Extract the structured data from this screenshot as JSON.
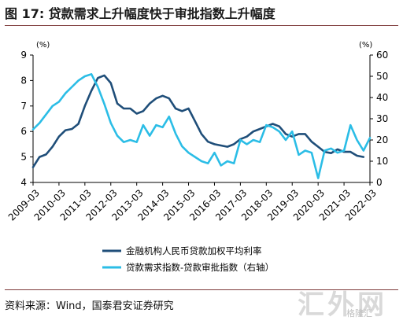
{
  "figure_title": "图 17: 贷款需求上升幅度快于审批指数上升幅度",
  "source": "资料来源：Wind，国泰君安证券研究",
  "watermark": "汇外网",
  "watermark_sub": "格隆汇",
  "colors": {
    "series_left": "#1f4e79",
    "series_right": "#2bbde6",
    "rule": "#7f3b3b"
  },
  "chart_data": {
    "type": "line",
    "left_axis_unit": "(%)",
    "right_axis_unit": "(%)",
    "ylim": [
      4,
      9
    ],
    "ylim_right": [
      0,
      60
    ],
    "yticks": [
      4,
      5,
      6,
      7,
      8,
      9
    ],
    "yticks_right": [
      0,
      10,
      20,
      30,
      40,
      50,
      60
    ],
    "x_range": [
      "2009-03",
      "2022-03"
    ],
    "xticks": [
      "2009-03",
      "2010-03",
      "2011-03",
      "2012-03",
      "2013-03",
      "2014-03",
      "2015-03",
      "2016-03",
      "2017-03",
      "2018-03",
      "2019-03",
      "2020-03",
      "2021-03",
      "2022-03"
    ],
    "grid": false,
    "legend_position": "bottom",
    "series": [
      {
        "name": "金融机构人民币贷款加权平均利率",
        "axis": "left",
        "x": [
          "2009-03",
          "2009-06",
          "2009-09",
          "2009-12",
          "2010-03",
          "2010-06",
          "2010-09",
          "2010-12",
          "2011-03",
          "2011-06",
          "2011-09",
          "2011-12",
          "2012-03",
          "2012-06",
          "2012-09",
          "2012-12",
          "2013-03",
          "2013-06",
          "2013-09",
          "2013-12",
          "2014-03",
          "2014-06",
          "2014-09",
          "2014-12",
          "2015-03",
          "2015-06",
          "2015-09",
          "2015-12",
          "2016-03",
          "2016-06",
          "2016-09",
          "2016-12",
          "2017-03",
          "2017-06",
          "2017-09",
          "2017-12",
          "2018-03",
          "2018-06",
          "2018-09",
          "2018-12",
          "2019-03",
          "2019-06",
          "2019-09",
          "2019-12",
          "2020-03",
          "2020-06",
          "2020-09",
          "2020-12",
          "2021-03",
          "2021-06",
          "2021-09",
          "2021-12"
        ],
        "values": [
          4.6,
          5.0,
          5.1,
          5.4,
          5.8,
          6.05,
          6.1,
          6.3,
          7.0,
          7.6,
          8.1,
          8.2,
          7.9,
          7.1,
          6.9,
          6.9,
          6.7,
          6.8,
          7.1,
          7.3,
          7.4,
          7.3,
          6.9,
          6.8,
          6.9,
          6.4,
          5.9,
          5.6,
          5.5,
          5.45,
          5.4,
          5.5,
          5.7,
          5.8,
          6.0,
          6.1,
          6.2,
          6.3,
          6.2,
          5.9,
          5.8,
          5.9,
          5.9,
          5.6,
          5.4,
          5.2,
          5.15,
          5.3,
          5.2,
          5.2,
          5.05,
          5.0
        ]
      },
      {
        "name": "贷款需求指数-贷款审批指数（右轴）",
        "axis": "right",
        "x": [
          "2009-03",
          "2009-06",
          "2009-09",
          "2009-12",
          "2010-03",
          "2010-06",
          "2010-09",
          "2010-12",
          "2011-03",
          "2011-06",
          "2011-09",
          "2011-12",
          "2012-03",
          "2012-06",
          "2012-09",
          "2012-12",
          "2013-03",
          "2013-06",
          "2013-09",
          "2013-12",
          "2014-03",
          "2014-06",
          "2014-09",
          "2014-12",
          "2015-03",
          "2015-06",
          "2015-09",
          "2015-12",
          "2016-03",
          "2016-06",
          "2016-09",
          "2016-12",
          "2017-03",
          "2017-06",
          "2017-09",
          "2017-12",
          "2018-03",
          "2018-06",
          "2018-09",
          "2018-12",
          "2019-03",
          "2019-06",
          "2019-09",
          "2019-12",
          "2020-03",
          "2020-06",
          "2020-09",
          "2020-12",
          "2021-03",
          "2021-06",
          "2021-09",
          "2021-12",
          "2022-03"
        ],
        "values": [
          25,
          28,
          32,
          36,
          38,
          42,
          45,
          48,
          50,
          51,
          45,
          37,
          28,
          22,
          19,
          20,
          19,
          27,
          22,
          27,
          26,
          31,
          23,
          17,
          14,
          12,
          10,
          9,
          14,
          8,
          10,
          9,
          20,
          18,
          20,
          19,
          27,
          26,
          24,
          20,
          24,
          13,
          15,
          14,
          2,
          15,
          16,
          14,
          15,
          27,
          20,
          15,
          21
        ]
      }
    ]
  }
}
